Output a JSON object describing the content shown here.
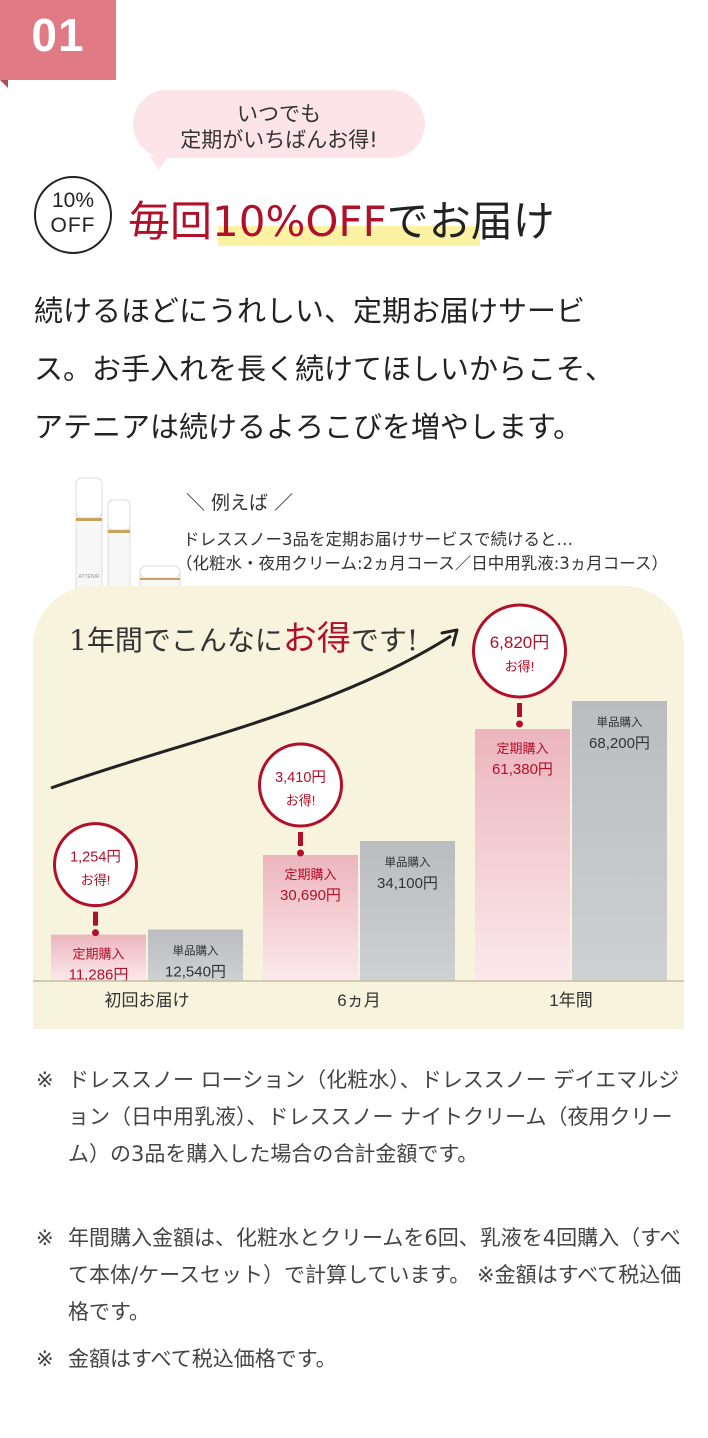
{
  "badge": {
    "number": "01"
  },
  "bubble": {
    "line1": "いつでも",
    "line2": "定期がいちばんお得!"
  },
  "off_badge": {
    "line1": "10%",
    "line2": "OFF"
  },
  "heading": {
    "part1": "毎回",
    "part2": "10%OFF",
    "part3": "でお届け"
  },
  "lead": [
    "続けるほどにうれしい、定期お届けサービ",
    "ス。お手入れを長く続けてほしいからこそ、",
    "アテニアは続けるよろこびを増やします。"
  ],
  "example": {
    "label": "＼ 例えば ／",
    "line1": "ドレススノー3品を定期お届けサービスで続けると…",
    "line2": "（化粧水・夜用クリーム:2ヵ月コース／日中用乳液:3ヵ月コース）",
    "product_brand": "ATTENIR"
  },
  "chart_data": {
    "type": "bar",
    "title_parts": [
      "1年間でこんなに",
      "お得",
      "です!"
    ],
    "categories": [
      "初回お届け",
      "6ヵ月",
      "1年間"
    ],
    "series": [
      {
        "name": "定期購入",
        "values": [
          11286,
          30690,
          61380
        ],
        "labels": [
          "11,286円",
          "30,690円",
          "61,380円"
        ]
      },
      {
        "name": "単品購入",
        "values": [
          12540,
          34100,
          68200
        ],
        "labels": [
          "12,540円",
          "34,100円",
          "68,200円"
        ]
      }
    ],
    "savings": [
      {
        "amount": "1,254円",
        "text": "お得!"
      },
      {
        "amount": "3,410円",
        "text": "お得!"
      },
      {
        "amount": "6,820円",
        "text": "お得!"
      }
    ],
    "colors": {
      "teiki": "#f2c9cf",
      "tanpin": "#c2c3c6",
      "accent": "#b0102a",
      "panel": "#f8f3dc"
    }
  },
  "notes": [
    {
      "mark": "※",
      "text": "ドレススノー ローション（化粧水）、ドレススノー デイエマルジョン（日中用乳液）、ドレススノー ナイトクリーム（夜用クリーム）の3品を購入した場合の合計金額です。"
    },
    {
      "mark": "※",
      "text": "年間購入金額は、化粧水とクリームを6回、乳液を4回購入（すべて本体/ケースセット）で計算しています。 ※金額はすべて税込価格です。"
    },
    {
      "mark": "※",
      "text": "金額はすべて税込価格です。"
    }
  ]
}
